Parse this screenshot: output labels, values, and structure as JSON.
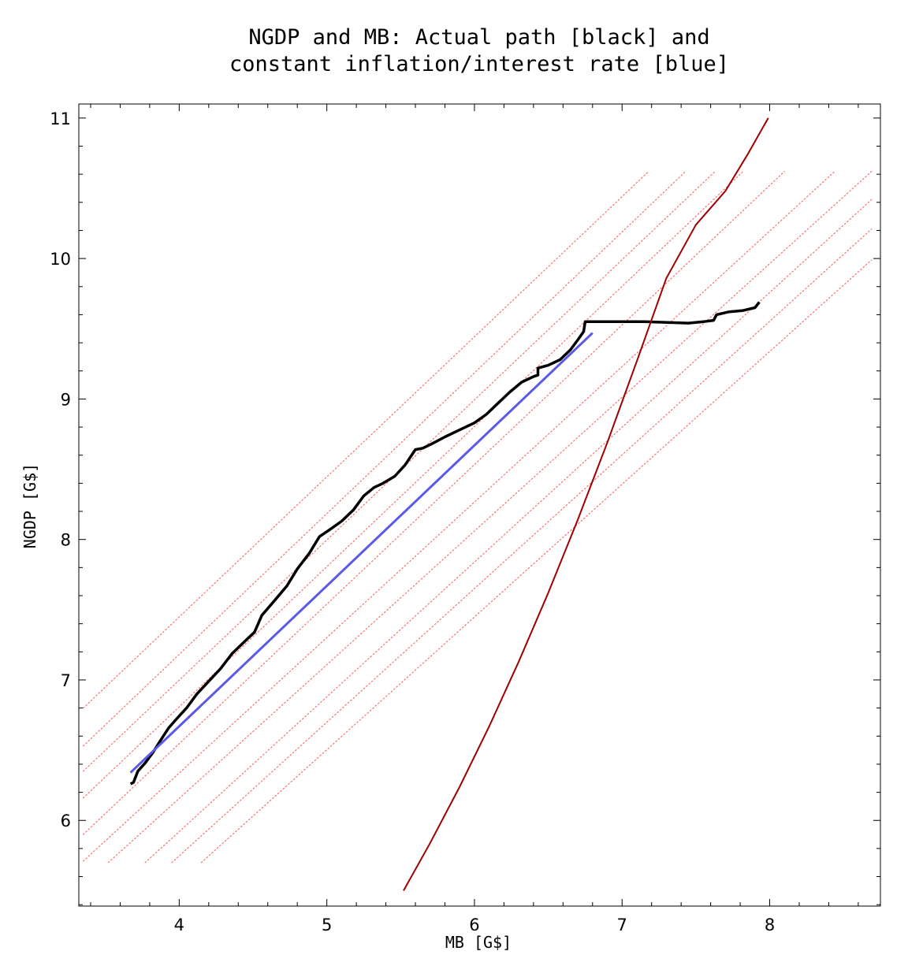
{
  "chart_data": {
    "type": "line",
    "title_lines": [
      "NGDP and MB: Actual path [black] and",
      "constant inflation/interest rate [blue]"
    ],
    "xlabel": "MB [G$]",
    "ylabel": "NGDP [G$]",
    "xlim": [
      3.32,
      8.75
    ],
    "ylim": [
      5.39,
      11.1
    ],
    "x_ticks": [
      4,
      5,
      6,
      7,
      8
    ],
    "y_ticks": [
      6,
      7,
      8,
      9,
      10,
      11
    ],
    "grid": false,
    "series": [
      {
        "color": "#000000",
        "style": "solid-thick",
        "points": [
          [
            3.67,
            6.26
          ],
          [
            3.69,
            6.27
          ],
          [
            3.72,
            6.35
          ],
          [
            3.77,
            6.41
          ],
          [
            3.82,
            6.48
          ],
          [
            3.88,
            6.58
          ],
          [
            3.93,
            6.66
          ],
          [
            3.98,
            6.72
          ],
          [
            4.05,
            6.8
          ],
          [
            4.12,
            6.9
          ],
          [
            4.2,
            6.99
          ],
          [
            4.28,
            7.08
          ],
          [
            4.36,
            7.19
          ],
          [
            4.45,
            7.28
          ],
          [
            4.51,
            7.34
          ],
          [
            4.56,
            7.46
          ],
          [
            4.65,
            7.57
          ],
          [
            4.73,
            7.67
          ],
          [
            4.8,
            7.79
          ],
          [
            4.88,
            7.9
          ],
          [
            4.95,
            8.02
          ],
          [
            5.02,
            8.07
          ],
          [
            5.1,
            8.13
          ],
          [
            5.18,
            8.21
          ],
          [
            5.25,
            8.31
          ],
          [
            5.32,
            8.37
          ],
          [
            5.38,
            8.4
          ],
          [
            5.46,
            8.45
          ],
          [
            5.53,
            8.53
          ],
          [
            5.6,
            8.64
          ],
          [
            5.65,
            8.65
          ],
          [
            5.71,
            8.68
          ],
          [
            5.8,
            8.73
          ],
          [
            5.9,
            8.78
          ],
          [
            6.0,
            8.83
          ],
          [
            6.08,
            8.89
          ],
          [
            6.16,
            8.97
          ],
          [
            6.24,
            9.05
          ],
          [
            6.32,
            9.12
          ],
          [
            6.4,
            9.16
          ],
          [
            6.43,
            9.17
          ],
          [
            6.43,
            9.22
          ],
          [
            6.5,
            9.24
          ],
          [
            6.58,
            9.28
          ],
          [
            6.65,
            9.35
          ],
          [
            6.7,
            9.42
          ],
          [
            6.74,
            9.48
          ],
          [
            6.75,
            9.55
          ],
          [
            7.15,
            9.55
          ],
          [
            7.45,
            9.54
          ],
          [
            7.55,
            9.55
          ],
          [
            7.62,
            9.56
          ],
          [
            7.64,
            9.6
          ],
          [
            7.72,
            9.62
          ],
          [
            7.82,
            9.63
          ],
          [
            7.9,
            9.65
          ],
          [
            7.93,
            9.69
          ]
        ]
      },
      {
        "color": "#5a5ae6",
        "style": "solid",
        "points": [
          [
            3.67,
            6.34
          ],
          [
            6.8,
            9.47
          ]
        ]
      },
      {
        "color": "#9e0000",
        "style": "solid-thin",
        "points": [
          [
            5.52,
            5.5
          ],
          [
            5.7,
            5.84
          ],
          [
            5.9,
            6.24
          ],
          [
            6.1,
            6.67
          ],
          [
            6.3,
            7.13
          ],
          [
            6.5,
            7.62
          ],
          [
            6.7,
            8.14
          ],
          [
            6.9,
            8.69
          ],
          [
            7.1,
            9.27
          ],
          [
            7.3,
            9.86
          ],
          [
            7.5,
            10.24
          ],
          [
            7.7,
            10.48
          ],
          [
            7.85,
            10.74
          ],
          [
            7.99,
            11.0
          ]
        ]
      }
    ],
    "reference_lines": {
      "color": "#ff6a6a",
      "style": "dotted",
      "lines": [
        [
          [
            3.35,
            6.8
          ],
          [
            7.18,
            10.62
          ]
        ],
        [
          [
            3.35,
            6.53
          ],
          [
            7.43,
            10.62
          ]
        ],
        [
          [
            3.35,
            6.35
          ],
          [
            7.63,
            10.62
          ]
        ],
        [
          [
            3.35,
            6.16
          ],
          [
            7.82,
            10.62
          ]
        ],
        [
          [
            3.35,
            5.9
          ],
          [
            8.1,
            10.62
          ]
        ],
        [
          [
            3.35,
            5.71
          ],
          [
            8.44,
            10.62
          ]
        ],
        [
          [
            3.52,
            5.7
          ],
          [
            8.69,
            10.62
          ]
        ],
        [
          [
            3.77,
            5.7
          ],
          [
            8.69,
            10.42
          ]
        ],
        [
          [
            3.95,
            5.7
          ],
          [
            8.69,
            10.21
          ]
        ],
        [
          [
            4.15,
            5.7
          ],
          [
            8.69,
            9.99
          ]
        ]
      ]
    }
  }
}
